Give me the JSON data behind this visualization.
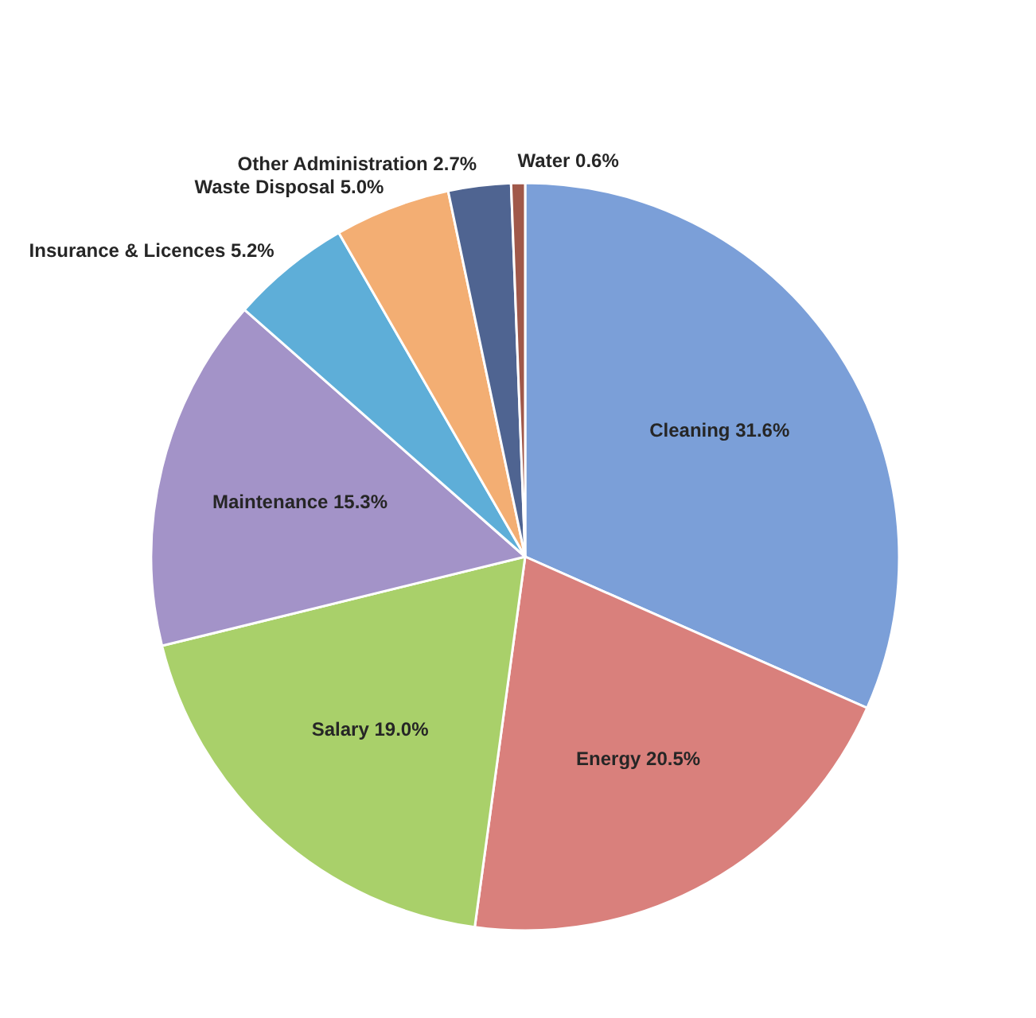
{
  "chart_data": {
    "type": "pie",
    "categories": [
      "Cleaning",
      "Energy",
      "Salary",
      "Maintenance",
      "Insurance & Licences",
      "Waste Disposal",
      "Other Administration",
      "Water"
    ],
    "values": [
      31.6,
      20.5,
      19.0,
      15.3,
      5.2,
      5.0,
      2.7,
      0.6
    ],
    "value_labels": [
      "31.6%",
      "20.5%",
      "19.0%",
      "15.3%",
      "5.2%",
      "5.0%",
      "2.7%",
      "0.6%"
    ],
    "colors": [
      "#7b9fd8",
      "#d9807c",
      "#a9d06a",
      "#a393c8",
      "#5eaed8",
      "#f3ae73",
      "#4f6491",
      "#a0584a"
    ]
  }
}
